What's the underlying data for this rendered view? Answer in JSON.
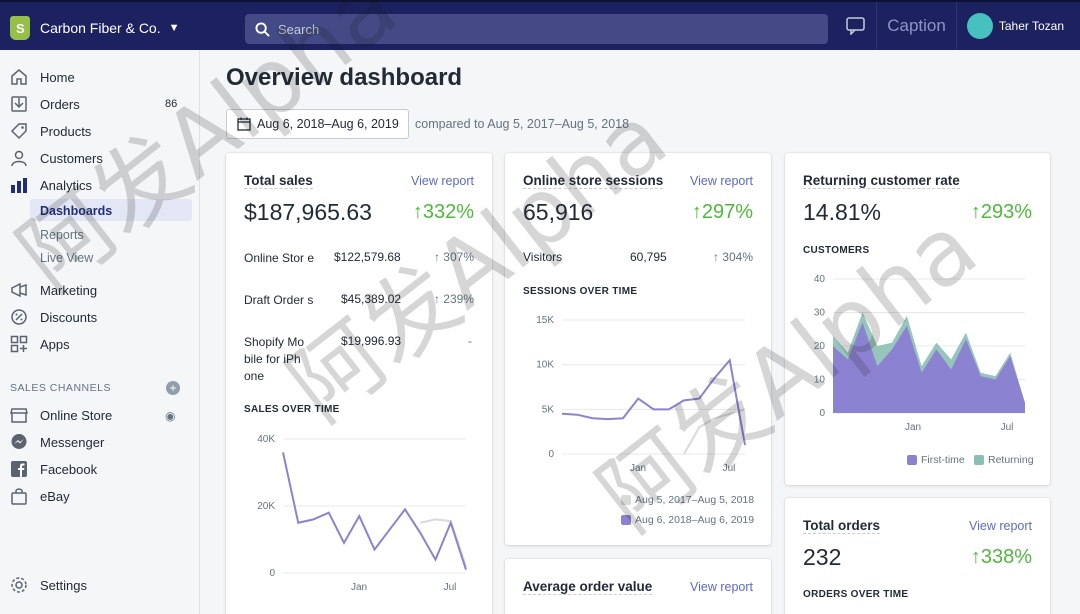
{
  "topbar": {
    "store_name": "Carbon Fiber & Co.",
    "search_placeholder": "Search",
    "caption_text": "Caption",
    "user_name": "Taher Tozan"
  },
  "sidebar": {
    "items": [
      {
        "label": "Home",
        "icon": "home-icon"
      },
      {
        "label": "Orders",
        "icon": "orders-icon",
        "badge": "86"
      },
      {
        "label": "Products",
        "icon": "tag-icon"
      },
      {
        "label": "Customers",
        "icon": "person-icon"
      },
      {
        "label": "Analytics",
        "icon": "bar-chart-icon"
      },
      {
        "label": "Marketing",
        "icon": "megaphone-icon"
      },
      {
        "label": "Discounts",
        "icon": "discount-icon"
      },
      {
        "label": "Apps",
        "icon": "apps-icon"
      }
    ],
    "analytics_subitems": [
      "Dashboards",
      "Reports",
      "Live View"
    ],
    "sales_channels_title": "SALES CHANNELS",
    "channels": [
      {
        "label": "Online Store",
        "icon": "store-icon"
      },
      {
        "label": "Messenger",
        "icon": "messenger-icon"
      },
      {
        "label": "Facebook",
        "icon": "facebook-icon"
      },
      {
        "label": "eBay",
        "icon": "bag-icon"
      }
    ],
    "settings_label": "Settings"
  },
  "page": {
    "title": "Overview dashboard",
    "date_range": "Aug 6, 2018–Aug 6, 2019",
    "compare_text": "compared to Aug 5, 2017–Aug 5, 2018"
  },
  "total_sales": {
    "title": "Total sales",
    "link": "View report",
    "value": "$187,965.63",
    "change": "↑332%",
    "rows": [
      {
        "label": "Online Stor e",
        "value": "$122,579.68",
        "change": "↑ 307%"
      },
      {
        "label": "Draft Order s",
        "value": "$45,389.02",
        "change": "↑ 239%"
      },
      {
        "label": "Shopify Mo bile for iPh one",
        "value": "$19,996.93",
        "change": "-"
      }
    ],
    "chart_title": "SALES OVER TIME"
  },
  "sessions": {
    "title": "Online store sessions",
    "link": "View report",
    "value": "65,916",
    "change": "↑297%",
    "visitors_label": "Visitors",
    "visitors_value": "60,795",
    "visitors_change": "↑ 304%",
    "chart_title": "SESSIONS OVER TIME",
    "legend_prev": "Aug 5, 2017–Aug 5, 2018",
    "legend_curr": "Aug 6, 2018–Aug 6, 2019"
  },
  "avg_order": {
    "title": "Average order value",
    "link": "View report"
  },
  "returning": {
    "title": "Returning customer rate",
    "value": "14.81%",
    "change": "↑293%",
    "chart_title": "CUSTOMERS",
    "legend_first": "First-time",
    "legend_returning": "Returning"
  },
  "total_orders": {
    "title": "Total orders",
    "link": "View report",
    "value": "232",
    "change": "↑338%",
    "chart_title": "ORDERS OVER TIME"
  },
  "colors": {
    "topbar": "#1c2260",
    "accent": "#5c6ac4",
    "positive": "#50b83c",
    "series_current": "#8c82d2",
    "series_returning": "#8bbfb4"
  },
  "chart_data": [
    {
      "type": "line",
      "title": "SALES OVER TIME",
      "x_ticks": [
        "Jan",
        "Jul"
      ],
      "y_ticks": [
        "0",
        "20K",
        "40K"
      ],
      "ylim": [
        0,
        40000
      ],
      "series": [
        {
          "name": "Aug 6, 2018–Aug 6, 2019",
          "values": [
            36000,
            15000,
            16000,
            18000,
            9000,
            17000,
            7000,
            13000,
            19000,
            12000,
            4000,
            15000,
            1000
          ]
        },
        {
          "name": "Aug 5, 2017–Aug 5, 2018",
          "values": [
            null,
            null,
            null,
            null,
            null,
            null,
            null,
            null,
            null,
            15000,
            16000,
            15500,
            2000
          ]
        }
      ]
    },
    {
      "type": "line",
      "title": "SESSIONS OVER TIME",
      "x_ticks": [
        "Jan",
        "Jul"
      ],
      "y_ticks": [
        "0",
        "5K",
        "10K",
        "15K"
      ],
      "ylim": [
        0,
        15000
      ],
      "series": [
        {
          "name": "Aug 6, 2018–Aug 6, 2019",
          "values": [
            4500,
            4400,
            4000,
            3900,
            4000,
            6200,
            5000,
            5000,
            6000,
            6200,
            8500,
            10500,
            1000
          ]
        },
        {
          "name": "Aug 5, 2017–Aug 5, 2018",
          "values": [
            null,
            null,
            null,
            null,
            null,
            null,
            null,
            null,
            0,
            3000,
            4000,
            4500,
            5000
          ]
        }
      ]
    },
    {
      "type": "area",
      "title": "CUSTOMERS",
      "x_ticks": [
        "Jan",
        "Jul"
      ],
      "y_ticks": [
        "0",
        "10",
        "20",
        "30",
        "40"
      ],
      "ylim": [
        0,
        40
      ],
      "series": [
        {
          "name": "First-time",
          "values": [
            20,
            16,
            27,
            14,
            19,
            26,
            12,
            19,
            13,
            22,
            11,
            10,
            17,
            3
          ]
        },
        {
          "name": "Returning",
          "values": [
            3,
            2,
            3,
            6,
            2,
            3,
            2,
            2,
            3,
            2,
            1,
            1,
            1,
            0
          ]
        }
      ]
    }
  ]
}
